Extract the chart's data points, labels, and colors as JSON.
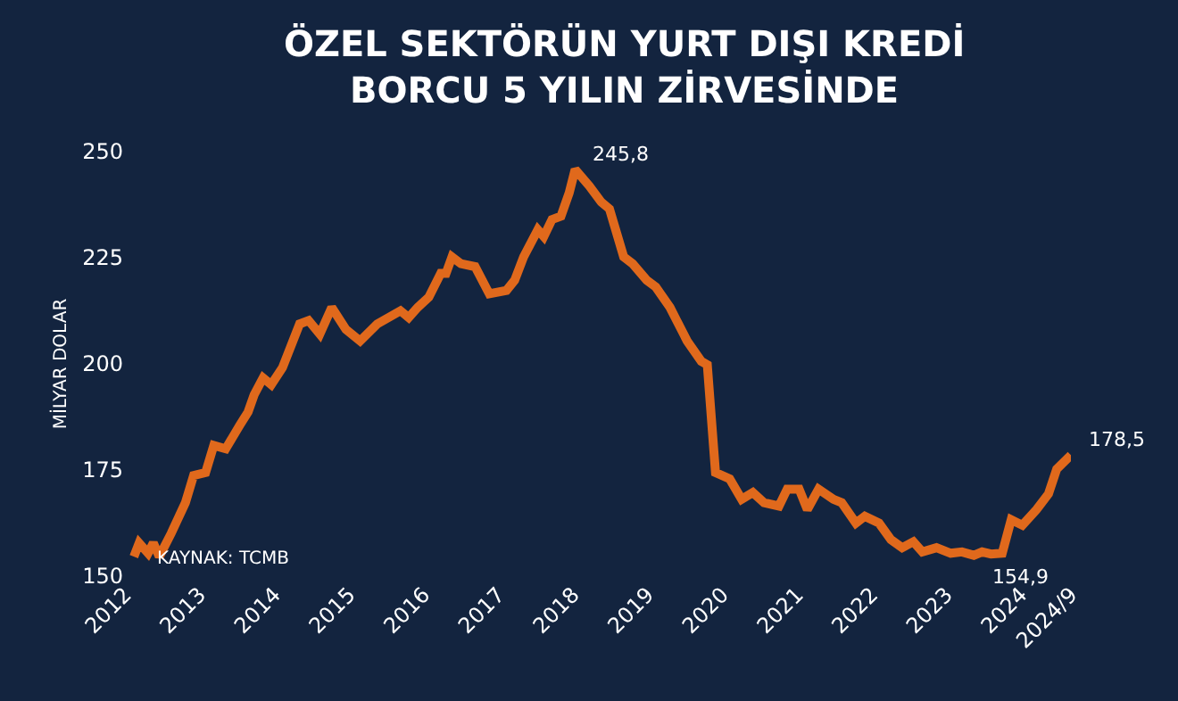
{
  "chart_data": {
    "type": "line",
    "title": "ÖZEL SEKTÖRÜN YURT DIŞI KREDİ\nBORCU 5 YILIN ZİRVESİNDE",
    "ylabel": "MİLYAR DOLAR",
    "x": [
      2012.12,
      2012.19,
      2012.31,
      2012.38,
      2012.46,
      2012.62,
      2012.81,
      2012.92,
      2013.08,
      2013.19,
      2013.35,
      2013.54,
      2013.65,
      2013.73,
      2013.85,
      2013.96,
      2014.11,
      2014.34,
      2014.46,
      2014.61,
      2014.77,
      2014.96,
      2015.15,
      2015.38,
      2015.69,
      2015.8,
      2015.92,
      2016.07,
      2016.23,
      2016.3,
      2016.38,
      2016.5,
      2016.69,
      2016.88,
      2017.11,
      2017.22,
      2017.34,
      2017.53,
      2017.61,
      2017.72,
      2017.84,
      2017.95,
      2018.03,
      2018.22,
      2018.38,
      2018.49,
      2018.68,
      2018.8,
      2018.99,
      2019.11,
      2019.3,
      2019.53,
      2019.72,
      2019.8,
      2019.91,
      2020.1,
      2020.26,
      2020.41,
      2020.56,
      2020.76,
      2020.87,
      2021.03,
      2021.14,
      2021.29,
      2021.49,
      2021.6,
      2021.79,
      2021.91,
      2022.1,
      2022.26,
      2022.41,
      2022.56,
      2022.68,
      2022.87,
      2023.06,
      2023.21,
      2023.37,
      2023.48,
      2023.6,
      2023.75,
      2023.87,
      2024.02,
      2024.21,
      2024.37,
      2024.48,
      2024.67
    ],
    "series": [
      {
        "color": "#e0691c",
        "values": [
          154.6,
          157.8,
          155.4,
          157.8,
          154.6,
          160.1,
          167.3,
          173.7,
          174.4,
          180.8,
          180.0,
          185.6,
          188.7,
          192.7,
          196.7,
          195.1,
          199.1,
          209.4,
          210.2,
          207,
          213.3,
          208.1,
          205.4,
          209.4,
          212.5,
          210.9,
          213.3,
          215.7,
          221.3,
          221.3,
          225.2,
          223.6,
          222.9,
          216.5,
          217.3,
          219.7,
          225.2,
          231.6,
          230,
          234,
          234.8,
          240.3,
          245.8,
          241.9,
          238.1,
          236.5,
          225.2,
          223.6,
          219.7,
          218.1,
          213.3,
          205.4,
          200.6,
          199.8,
          174.4,
          172.9,
          168.1,
          169.7,
          167.3,
          166.5,
          170.5,
          170.5,
          165.7,
          170.5,
          168.1,
          167.3,
          162.5,
          164.1,
          162.5,
          158.6,
          156.7,
          158.1,
          155.7,
          156.7,
          155.4,
          155.7,
          154.9,
          155.7,
          155.2,
          155.4,
          163.3,
          162,
          165.7,
          169.4,
          175.2,
          178.5
        ]
      }
    ],
    "xlim": [
      2012,
      2024.67
    ],
    "xticks": [
      2012,
      2013,
      2014,
      2015,
      2016,
      2017,
      2018,
      2019,
      2020,
      2021,
      2022,
      2023,
      2024,
      {
        "value": 2024.67,
        "label": "2024/9"
      }
    ],
    "ylim": [
      150,
      250
    ],
    "yticks": [
      150,
      175,
      200,
      225,
      250
    ],
    "grid": false,
    "marker": "none",
    "line_style": "solid",
    "annotations": [
      {
        "text": "245,8",
        "x": 2018.03,
        "y": 245.8
      },
      {
        "text": "154,9",
        "x": 2023.37,
        "y": 154.9
      },
      {
        "text": "178,5",
        "x": 2024.67,
        "y": 178.5
      },
      "KAYNAK: TCMB"
    ]
  }
}
